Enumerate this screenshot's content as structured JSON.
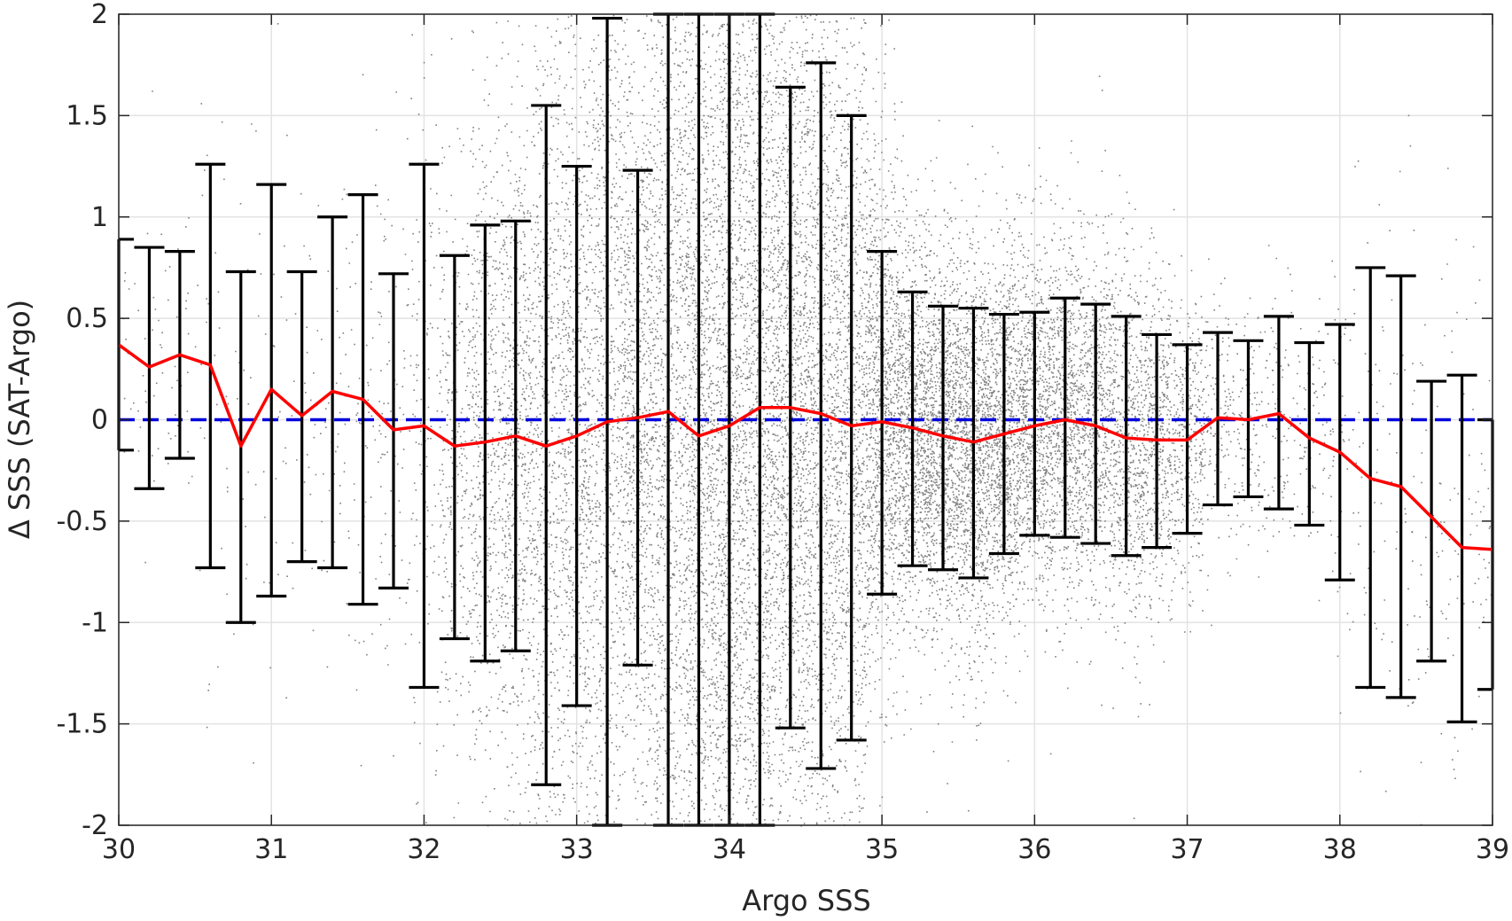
{
  "chart_data": {
    "type": "scatter",
    "title": "",
    "xlabel": "Argo SSS",
    "ylabel": "Δ SSS (SAT-Argo)",
    "xlim": [
      30,
      39
    ],
    "ylim": [
      -2,
      2
    ],
    "xticks": [
      30,
      31,
      32,
      33,
      34,
      35,
      36,
      37,
      38,
      39
    ],
    "yticks": [
      -2,
      -1.5,
      -1,
      -0.5,
      0,
      0.5,
      1,
      1.5,
      2
    ],
    "xtick_labels": [
      "30",
      "31",
      "32",
      "33",
      "34",
      "35",
      "36",
      "37",
      "38",
      "39"
    ],
    "ytick_labels": [
      "-2",
      "-1.5",
      "-1",
      "-0.5",
      "0",
      "0.5",
      "1",
      "1.5",
      "2"
    ],
    "grid": true,
    "colors": {
      "scatter": "#808080",
      "mean_line": "#ff0000",
      "zero_line": "#0000dd",
      "error_bars": "#000000"
    },
    "scatter_description_bins": {
      "x_bin_centers": [
        30.0,
        30.2,
        30.4,
        30.6,
        30.8,
        31.0,
        31.2,
        31.4,
        31.6,
        31.8,
        32.0,
        32.2,
        32.4,
        32.6,
        32.8,
        33.0,
        33.2,
        33.4,
        33.6,
        33.8,
        34.0,
        34.2,
        34.4,
        34.6,
        34.8,
        35.0,
        35.2,
        35.4,
        35.6,
        35.8,
        36.0,
        36.2,
        36.4,
        36.6,
        36.8,
        37.0,
        37.2,
        37.4,
        37.6,
        37.8,
        38.0,
        38.2,
        38.4,
        38.6,
        38.8,
        39.0
      ],
      "relative_density": [
        0.02,
        0.02,
        0.02,
        0.02,
        0.02,
        0.02,
        0.02,
        0.03,
        0.04,
        0.06,
        0.1,
        0.2,
        0.35,
        0.45,
        0.5,
        0.55,
        0.6,
        0.65,
        0.75,
        1.0,
        1.0,
        1.0,
        0.9,
        0.8,
        0.75,
        0.7,
        0.7,
        0.7,
        0.7,
        0.65,
        0.55,
        0.5,
        0.45,
        0.4,
        0.35,
        0.25,
        0.1,
        0.08,
        0.06,
        0.05,
        0.04,
        0.03,
        0.03,
        0.03,
        0.03,
        0.03
      ]
    },
    "series": [
      {
        "kind": "error_bars",
        "x": [
          30.0,
          30.2,
          30.4,
          30.6,
          30.8,
          31.0,
          31.2,
          31.4,
          31.6,
          31.8,
          32.0,
          32.2,
          32.4,
          32.6,
          32.8,
          33.0,
          33.2,
          33.4,
          33.6,
          33.8,
          34.0,
          34.2,
          34.4,
          34.6,
          34.8,
          35.0,
          35.2,
          35.4,
          35.6,
          35.8,
          36.0,
          36.2,
          36.4,
          36.6,
          36.8,
          37.0,
          37.2,
          37.4,
          37.6,
          37.8,
          38.0,
          38.2,
          38.4,
          38.6,
          38.8,
          39.0
        ],
        "upper": [
          0.89,
          0.85,
          0.83,
          1.26,
          0.73,
          1.16,
          0.73,
          1.0,
          1.11,
          0.72,
          1.26,
          0.81,
          0.96,
          0.98,
          1.55,
          1.25,
          1.98,
          1.23,
          2.0,
          2.0,
          2.0,
          2.0,
          1.64,
          1.76,
          1.5,
          0.83,
          0.63,
          0.56,
          0.55,
          0.52,
          0.53,
          0.6,
          0.57,
          0.51,
          0.42,
          0.37,
          0.43,
          0.39,
          0.51,
          0.38,
          0.47,
          0.75,
          0.71,
          0.19,
          0.22,
          0.0
        ],
        "lower": [
          -0.15,
          -0.34,
          -0.19,
          -0.73,
          -1.0,
          -0.87,
          -0.7,
          -0.73,
          -0.91,
          -0.83,
          -1.32,
          -1.08,
          -1.19,
          -1.14,
          -1.8,
          -1.41,
          -2.0,
          -1.21,
          -2.0,
          -2.0,
          -2.0,
          -2.0,
          -1.52,
          -1.72,
          -1.58,
          -0.86,
          -0.72,
          -0.74,
          -0.78,
          -0.66,
          -0.57,
          -0.58,
          -0.61,
          -0.67,
          -0.63,
          -0.56,
          -0.42,
          -0.38,
          -0.44,
          -0.52,
          -0.79,
          -1.32,
          -1.37,
          -1.19,
          -1.49,
          -1.33
        ]
      },
      {
        "kind": "line",
        "x": [
          30.0,
          30.2,
          30.4,
          30.6,
          30.8,
          31.0,
          31.2,
          31.4,
          31.6,
          31.8,
          32.0,
          32.2,
          32.4,
          32.6,
          32.8,
          33.0,
          33.2,
          33.4,
          33.6,
          33.8,
          34.0,
          34.2,
          34.4,
          34.6,
          34.8,
          35.0,
          35.2,
          35.4,
          35.6,
          35.8,
          36.0,
          36.2,
          36.4,
          36.6,
          36.8,
          37.0,
          37.2,
          37.4,
          37.6,
          37.8,
          38.0,
          38.2,
          38.4,
          38.6,
          38.8,
          39.0
        ],
        "values": [
          0.37,
          0.26,
          0.32,
          0.27,
          -0.13,
          0.15,
          0.02,
          0.14,
          0.1,
          -0.05,
          -0.03,
          -0.13,
          -0.11,
          -0.08,
          -0.13,
          -0.08,
          -0.01,
          0.01,
          0.04,
          -0.08,
          -0.03,
          0.06,
          0.06,
          0.03,
          -0.03,
          -0.01,
          -0.04,
          -0.08,
          -0.11,
          -0.07,
          -0.03,
          0.0,
          -0.03,
          -0.09,
          -0.1,
          -0.1,
          0.01,
          0.0,
          0.03,
          -0.09,
          -0.16,
          -0.29,
          -0.33,
          -0.48,
          -0.63,
          -0.64
        ]
      },
      {
        "kind": "reference_line",
        "y": 0
      }
    ]
  }
}
